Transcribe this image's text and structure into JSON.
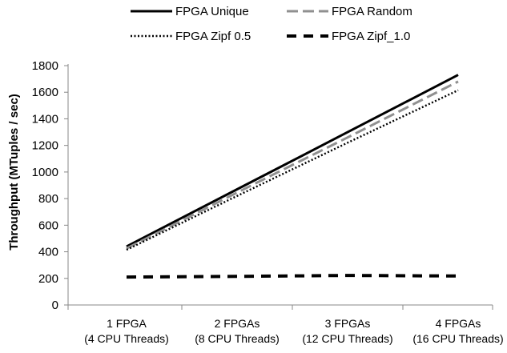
{
  "chart_data": {
    "type": "line",
    "title": "",
    "xlabel": "",
    "ylabel": "Throughput (MTuples / sec)",
    "ylim": [
      0,
      1800
    ],
    "yticks": [
      0,
      200,
      400,
      600,
      800,
      1000,
      1200,
      1400,
      1600,
      1800
    ],
    "grid": false,
    "legend_position": "top",
    "categories": [
      {
        "line1": "1 FPGA",
        "line2": "(4 CPU Threads)"
      },
      {
        "line1": "2 FPGAs",
        "line2": "(8 CPU Threads)"
      },
      {
        "line1": "3 FPGAs",
        "line2": "(12 CPU Threads)"
      },
      {
        "line1": "4 FPGAs",
        "line2": "(16 CPU Threads)"
      }
    ],
    "series": [
      {
        "name": "FPGA Unique",
        "values": [
          440,
          870,
          1300,
          1730
        ],
        "color": "#000000",
        "dash": "solid"
      },
      {
        "name": "FPGA Random",
        "values": [
          425,
          845,
          1260,
          1680
        ],
        "color": "#909090",
        "dash": "dashed"
      },
      {
        "name": "FPGA Zipf 0.5",
        "values": [
          415,
          820,
          1220,
          1615
        ],
        "color": "#000000",
        "dash": "dotted"
      },
      {
        "name": "FPGA Zipf_1.0",
        "values": [
          210,
          215,
          222,
          218
        ],
        "color": "#000000",
        "dash": "longdash"
      }
    ]
  }
}
